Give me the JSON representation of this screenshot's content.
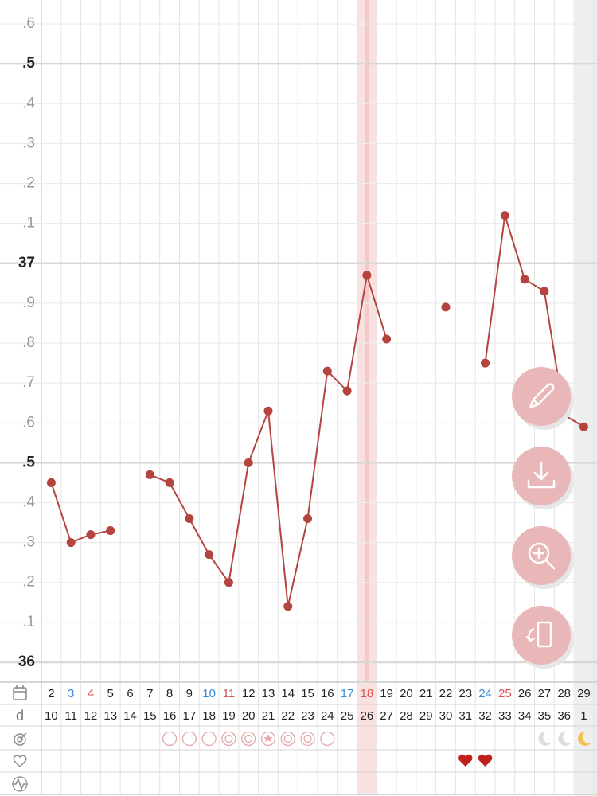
{
  "chart_data": {
    "type": "line",
    "categories": [
      2,
      3,
      4,
      5,
      6,
      7,
      8,
      9,
      10,
      11,
      12,
      13,
      14,
      15,
      16,
      17,
      18,
      19,
      20,
      21,
      22,
      23,
      24,
      25,
      26,
      27,
      28,
      29
    ],
    "category_colors": [
      "#222",
      "#3a8ad6",
      "#d9534f",
      "#222",
      "#222",
      "#222",
      "#222",
      "#222",
      "#3a8ad6",
      "#d9534f",
      "#222",
      "#222",
      "#222",
      "#222",
      "#222",
      "#3a8ad6",
      "#d9534f",
      "#222",
      "#222",
      "#222",
      "#222",
      "#222",
      "#3a8ad6",
      "#d9534f",
      "#222",
      "#222",
      "#222",
      "#222"
    ],
    "cycle_day_label": "d",
    "cycle_days": [
      10,
      11,
      12,
      13,
      14,
      15,
      16,
      17,
      18,
      19,
      20,
      21,
      22,
      23,
      24,
      25,
      26,
      27,
      28,
      29,
      30,
      31,
      32,
      33,
      34,
      35,
      36,
      1
    ],
    "highlight_index": 16,
    "series": [
      {
        "color": "#b5443f",
        "values": [
          36.45,
          36.3,
          36.32,
          36.33,
          null,
          36.47,
          36.45,
          36.36,
          36.27,
          36.2,
          36.5,
          36.63,
          36.14,
          36.36,
          36.73,
          36.68,
          36.97,
          36.81,
          null,
          null,
          36.89,
          null,
          36.75,
          37.12,
          36.96,
          36.93,
          36.62,
          36.59
        ]
      }
    ],
    "ylim": [
      35.95,
      37.66
    ],
    "yticks": [
      36,
      {
        "value": 36.1,
        "label": ".1"
      },
      {
        "value": 36.2,
        "label": ".2"
      },
      {
        "value": 36.3,
        "label": ".3"
      },
      {
        "value": 36.4,
        "label": ".4"
      },
      {
        "value": 36.5,
        "label": ".5"
      },
      {
        "value": 36.6,
        "label": ".6"
      },
      {
        "value": 36.7,
        "label": ".7"
      },
      {
        "value": 36.8,
        "label": ".8"
      },
      {
        "value": 36.9,
        "label": ".9"
      },
      37,
      {
        "value": 37.1,
        "label": ".1"
      },
      {
        "value": 37.2,
        "label": ".2"
      },
      {
        "value": 37.3,
        "label": ".3"
      },
      {
        "value": 37.4,
        "label": ".4"
      },
      {
        "value": 37.5,
        "label": ".5"
      },
      {
        "value": 37.6,
        "label": ".6"
      }
    ],
    "grid": true
  }
}
